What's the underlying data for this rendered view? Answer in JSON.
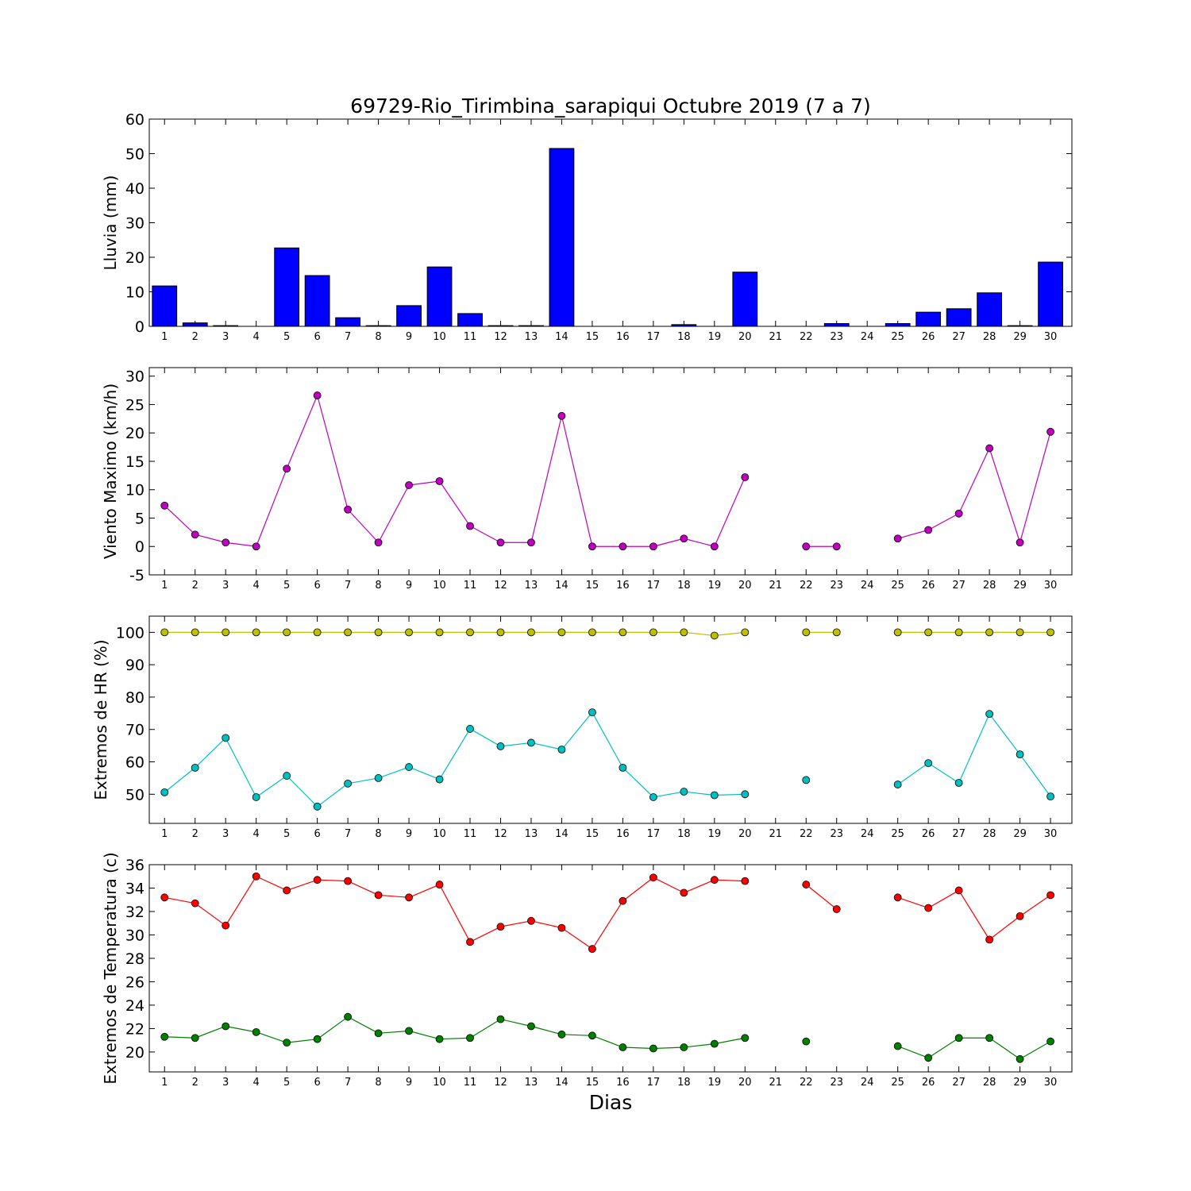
{
  "chart_data": [
    {
      "type": "bar",
      "title": "69729-Rio_Tirimbina_sarapiqui Octubre 2019  (7 a 7)",
      "xlabel": "",
      "ylabel": "Lluvia (mm)",
      "ylim": [
        0,
        60
      ],
      "yticks": [
        0,
        10,
        20,
        30,
        40,
        50,
        60
      ],
      "categories": [
        1,
        2,
        3,
        4,
        5,
        6,
        7,
        8,
        9,
        10,
        11,
        12,
        13,
        14,
        15,
        16,
        17,
        18,
        19,
        20,
        21,
        22,
        23,
        24,
        25,
        26,
        27,
        28,
        29,
        30
      ],
      "series": [
        {
          "color": "#0000ff",
          "values": [
            11.7,
            1.0,
            0.2,
            0.0,
            22.7,
            14.7,
            2.5,
            0.2,
            6.0,
            17.2,
            3.7,
            0.2,
            0.2,
            51.5,
            0.0,
            0.0,
            0.0,
            0.5,
            0.0,
            15.7,
            0.0,
            0.0,
            0.8,
            0.0,
            0.8,
            4.1,
            5.1,
            9.7,
            0.2,
            18.6
          ]
        }
      ]
    },
    {
      "type": "line",
      "ylabel": "Viento Maximo (km/h)",
      "ylim": [
        -5,
        31.5
      ],
      "yticks": [
        -5,
        0,
        5,
        10,
        15,
        20,
        25,
        30
      ],
      "categories": [
        1,
        2,
        3,
        4,
        5,
        6,
        7,
        8,
        9,
        10,
        11,
        12,
        13,
        14,
        15,
        16,
        17,
        18,
        19,
        20,
        21,
        22,
        23,
        24,
        25,
        26,
        27,
        28,
        29,
        30
      ],
      "series": [
        {
          "color": "#bf00bf",
          "values": [
            7.2,
            2.1,
            0.7,
            0.0,
            13.7,
            26.6,
            6.5,
            0.7,
            10.8,
            11.5,
            3.6,
            0.7,
            0.7,
            23.0,
            0.0,
            0.0,
            0.0,
            1.4,
            0.0,
            12.2,
            null,
            0.0,
            0.0,
            null,
            1.4,
            2.9,
            5.8,
            17.3,
            0.7,
            20.2
          ]
        }
      ]
    },
    {
      "type": "line",
      "ylabel": "Extremos de HR (%)",
      "ylim": [
        41,
        105
      ],
      "yticks": [
        50,
        60,
        70,
        80,
        90,
        100
      ],
      "categories": [
        1,
        2,
        3,
        4,
        5,
        6,
        7,
        8,
        9,
        10,
        11,
        12,
        13,
        14,
        15,
        16,
        17,
        18,
        19,
        20,
        21,
        22,
        23,
        24,
        25,
        26,
        27,
        28,
        29,
        30
      ],
      "series": [
        {
          "color": "#bfbf00",
          "values": [
            100,
            100,
            100,
            100,
            100,
            100,
            100,
            100,
            100,
            100,
            100,
            100,
            100,
            100,
            100,
            100,
            100,
            100,
            99,
            100,
            null,
            100,
            100,
            null,
            100,
            100,
            100,
            100,
            100,
            100
          ]
        },
        {
          "color": "#00bfbf",
          "values": [
            50.6,
            58.2,
            67.4,
            49.1,
            55.7,
            46.2,
            53.3,
            55.0,
            58.4,
            54.6,
            70.2,
            64.8,
            65.9,
            63.8,
            75.3,
            58.2,
            49.1,
            50.8,
            49.7,
            50.0,
            null,
            54.4,
            null,
            null,
            53.0,
            59.6,
            53.5,
            74.8,
            62.3,
            49.3
          ]
        }
      ]
    },
    {
      "type": "line",
      "ylabel": "Extremos de Temperatura (c)",
      "xlabel": "Dias",
      "ylim": [
        18.3,
        36
      ],
      "yticks": [
        20,
        22,
        24,
        26,
        28,
        30,
        32,
        34,
        36
      ],
      "categories": [
        1,
        2,
        3,
        4,
        5,
        6,
        7,
        8,
        9,
        10,
        11,
        12,
        13,
        14,
        15,
        16,
        17,
        18,
        19,
        20,
        21,
        22,
        23,
        24,
        25,
        26,
        27,
        28,
        29,
        30
      ],
      "series": [
        {
          "color": "#ff0000",
          "values": [
            33.2,
            32.7,
            30.8,
            35.0,
            33.8,
            34.7,
            34.6,
            33.4,
            33.2,
            34.3,
            29.4,
            30.7,
            31.2,
            30.6,
            28.8,
            32.9,
            34.9,
            33.6,
            34.7,
            34.6,
            null,
            34.3,
            32.2,
            null,
            33.2,
            32.3,
            33.8,
            29.6,
            31.6,
            33.4
          ]
        },
        {
          "color": "#008000",
          "values": [
            21.3,
            21.2,
            22.2,
            21.7,
            20.8,
            21.1,
            23.0,
            21.6,
            21.8,
            21.1,
            21.2,
            22.8,
            22.2,
            21.5,
            21.4,
            20.4,
            20.3,
            20.4,
            20.7,
            21.2,
            null,
            20.9,
            null,
            null,
            20.5,
            19.5,
            21.2,
            21.2,
            19.4,
            20.9
          ]
        }
      ]
    }
  ]
}
